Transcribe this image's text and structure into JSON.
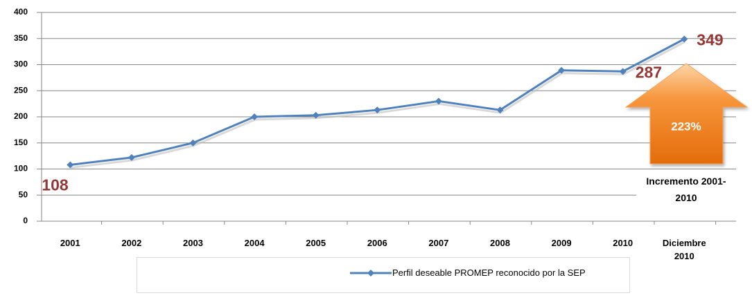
{
  "chart_data": {
    "type": "line",
    "categories": [
      "2001",
      "2002",
      "2003",
      "2004",
      "2005",
      "2006",
      "2007",
      "2008",
      "2009",
      "2010",
      "Diciembre 2010"
    ],
    "series": [
      {
        "name": "Perfil deseable PROMEP reconocido por la SEP",
        "color": "#4f81bd",
        "values": [
          108,
          122,
          150,
          200,
          203,
          213,
          230,
          213,
          289,
          287,
          349
        ]
      }
    ],
    "ylim": [
      0,
      400
    ],
    "yticks": [
      0,
      50,
      100,
      150,
      200,
      250,
      300,
      350,
      400
    ],
    "grid": true,
    "legend": "bottom",
    "annotations": {
      "arrow_label": "223%",
      "note": "Incremento 2001-2010"
    }
  }
}
